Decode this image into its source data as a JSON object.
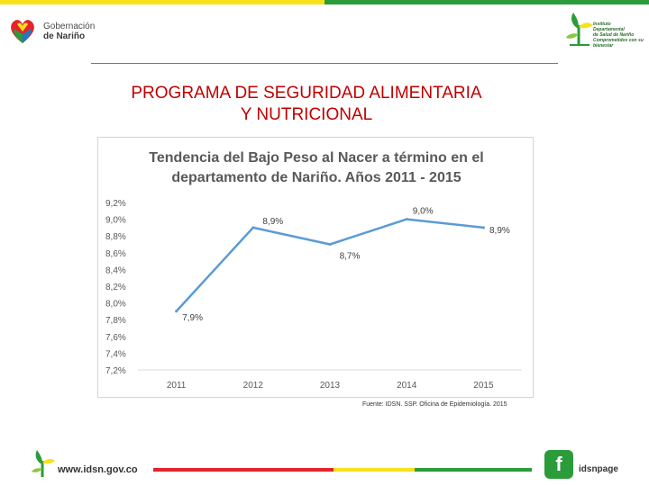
{
  "header": {
    "logo_left_line1": "Gobernación",
    "logo_left_line2": "de Nariño",
    "logo_right_lines": [
      "Instituto",
      "Departamental",
      "de Salud de Nariño",
      "Comprometidos con su bienestar"
    ]
  },
  "slide": {
    "title_line1": "PROGRAMA DE SEGURIDAD ALIMENTARIA",
    "title_line2": "Y NUTRICIONAL",
    "source": "Fuente: IDSN. SSP. Oficina de Epidemiología. 2015"
  },
  "chart_data": {
    "type": "line",
    "title_line1": "Tendencia del Bajo Peso al Nacer a término en el",
    "title_line2": "departamento de Nariño. Años 2011 - 2015",
    "categories": [
      "2011",
      "2012",
      "2013",
      "2014",
      "2015"
    ],
    "series": [
      {
        "name": "Bajo Peso al Nacer",
        "values": [
          7.9,
          8.9,
          8.7,
          9.0,
          8.9
        ]
      }
    ],
    "data_labels": [
      "7,9%",
      "8,9%",
      "8,7%",
      "9,0%",
      "8,9%"
    ],
    "ylim": [
      7.2,
      9.2
    ],
    "yticks": [
      9.2,
      9.0,
      8.8,
      8.6,
      8.4,
      8.2,
      8.0,
      7.8,
      7.6,
      7.4,
      7.2
    ],
    "ytick_labels": [
      "9,2%",
      "9,0%",
      "8,8%",
      "8,6%",
      "8,4%",
      "8,2%",
      "8,0%",
      "7,8%",
      "7,6%",
      "7,4%",
      "7,2%"
    ],
    "grid": false,
    "line_color": "#5b9bd5"
  },
  "footer": {
    "url": "www.idsn.gov.co",
    "fb_letter": "f",
    "fb_label": "idsnpage"
  }
}
